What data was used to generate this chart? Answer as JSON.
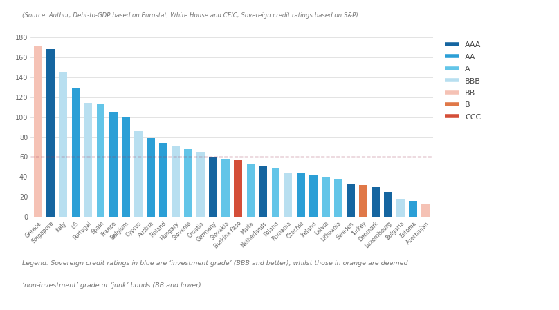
{
  "countries": [
    "Greece",
    "Singapore",
    "Italy",
    "US",
    "Portugal",
    "Spain",
    "France",
    "Belgium",
    "Cyprus",
    "Austria",
    "Finland",
    "Hungary",
    "Slovenia",
    "Croatia",
    "Germany",
    "Slovakia",
    "Burkina Faso",
    "Malta",
    "Netherlands",
    "Poland",
    "Romania",
    "Czechia",
    "Ireland",
    "Latvia",
    "Lithuania",
    "Sweden",
    "Turkey",
    "Denmark",
    "Luxembourg",
    "Bulgaria",
    "Estonia",
    "Azerbaijan"
  ],
  "values": [
    171,
    168,
    145,
    129,
    114,
    113,
    105,
    100,
    86,
    79,
    74,
    71,
    68,
    65,
    60,
    58,
    57,
    53,
    51,
    49,
    44,
    44,
    42,
    40,
    38,
    33,
    32,
    30,
    25,
    18,
    16,
    13
  ],
  "ratings": [
    "BB",
    "AAA",
    "BBB",
    "AA",
    "BBB",
    "A",
    "AA",
    "AA",
    "BBB",
    "AA",
    "AA",
    "BBB",
    "A",
    "BBB",
    "AAA",
    "A",
    "CCC",
    "A",
    "AAA",
    "A",
    "BBB",
    "AA",
    "AA",
    "A",
    "A",
    "AAA",
    "B",
    "AAA",
    "AAA",
    "BBB",
    "AA",
    "BB"
  ],
  "rating_colors": {
    "AAA": "#1565a0",
    "AA": "#2b9fd6",
    "A": "#63c5e8",
    "BBB": "#b8dff0",
    "BB": "#f5c2b5",
    "B": "#e07848",
    "CCC": "#d44e38"
  },
  "dashed_line_y": 60,
  "dashed_line_color": "#9e3354",
  "source_text": "(Source: Author; Debt-to-GDP based on Eurostat, White House and CEIC; Sovereign credit ratings based on S&P)",
  "legend_text_line1": "Legend: Sovereign credit ratings in blue are ‘investment grade’ (BBB and better), whilst those in orange are deemed",
  "legend_text_line2": "‘non-investment’ grade or ‘junk’ bonds (BB and lower).",
  "ylim": [
    0,
    180
  ],
  "yticks": [
    0,
    20,
    40,
    60,
    80,
    100,
    120,
    140,
    160,
    180
  ],
  "background_color": "#ffffff",
  "legend_order": [
    "AAA",
    "AA",
    "A",
    "BBB",
    "BB",
    "B",
    "CCC"
  ],
  "bar_width": 0.65
}
